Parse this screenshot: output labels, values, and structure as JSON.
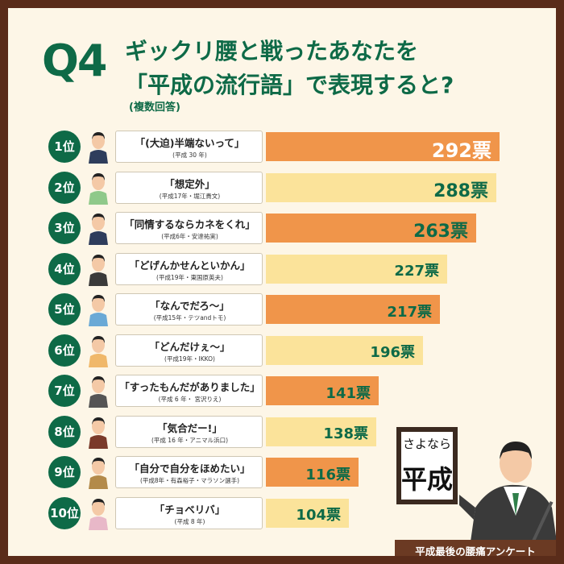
{
  "header": {
    "q_label": "Q4",
    "line1": "ギックリ腰と戦ったあなたを",
    "line2": "「平成の流行語」で表現すると?",
    "note": "(複数回答)"
  },
  "chart_data": {
    "type": "bar",
    "orientation": "horizontal",
    "unit": "票",
    "max_value": 292,
    "categories": [
      "1位",
      "2位",
      "3位",
      "4位",
      "5位",
      "6位",
      "7位",
      "8位",
      "9位",
      "10位"
    ],
    "values": [
      292,
      288,
      263,
      227,
      217,
      196,
      141,
      138,
      116,
      104
    ],
    "value_labels": [
      "292票",
      "288票",
      "263票",
      "227票",
      "217票",
      "196票",
      "141票",
      "138票",
      "116票",
      "104票"
    ],
    "phrases": [
      "「(大迫)半端ないって」",
      "「想定外」",
      "「同情するならカネをくれ」",
      "「どげんかせんといかん」",
      "「なんでだろ〜」",
      "「どんだけぇ〜」",
      "「すったもんだがありました」",
      "「気合だー!」",
      "「自分で自分をほめたい」",
      "「チョベリバ」"
    ],
    "notes": [
      "(平成 30 年)",
      "(平成17年・堀江貴文)",
      "(平成6年・安達祐実)",
      "(平成19年・東国原英夫)",
      "(平成15年・テツandトモ)",
      "(平成19年・IKKO)",
      "(平成 6 年・ 宮沢りえ)",
      "(平成 16 年・アニマル浜口)",
      "(平成8年・有森裕子・マラソン選手)",
      "(平成 8 年)"
    ],
    "bar_colors": [
      "#f0954a",
      "#fbe39a",
      "#f0954a",
      "#fbe39a",
      "#f0954a",
      "#fbe39a",
      "#f0954a",
      "#fbe39a",
      "#f0954a",
      "#fbe39a"
    ]
  },
  "figure": {
    "sign_text_1": "さよなら",
    "sign_text_2": "平成",
    "ribbon": "平成最後の腰痛アンケート"
  },
  "colors": {
    "green": "#0e6a47",
    "orange": "#f0954a",
    "yellow": "#fbe39a",
    "frame": "#5a2c1a"
  }
}
